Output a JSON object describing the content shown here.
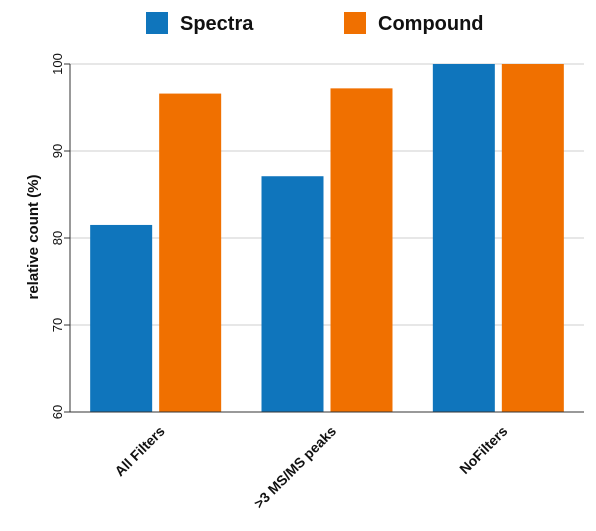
{
  "chart_data": {
    "type": "bar",
    "categories": [
      "All Filters",
      ">3 MS/MS peaks",
      "NoFilters"
    ],
    "series": [
      {
        "name": "Spectra",
        "color": "#0f75bc",
        "values": [
          81.5,
          87.1,
          100
        ]
      },
      {
        "name": "Compound",
        "color": "#f07000",
        "values": [
          96.6,
          97.2,
          100
        ]
      }
    ],
    "xlabel": "",
    "ylabel": "relative count (%)",
    "ylim": [
      60,
      100
    ],
    "yticks": [
      60,
      70,
      80,
      90,
      100
    ],
    "grid": true,
    "legend_position": "top-center"
  }
}
